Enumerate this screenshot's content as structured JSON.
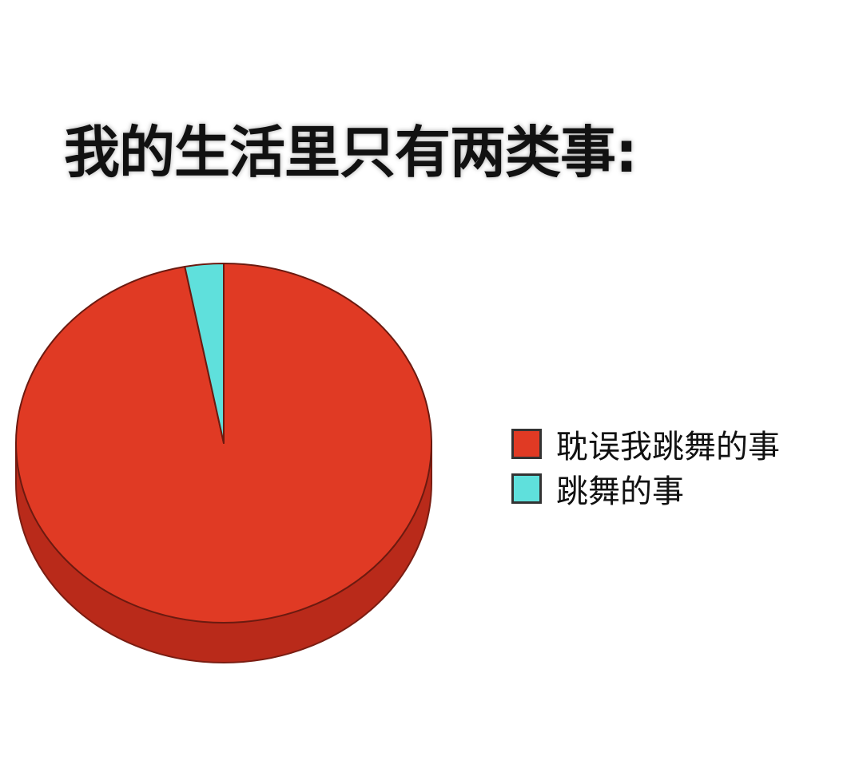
{
  "chart_data": {
    "type": "pie",
    "title": "我的生活里只有两类事:",
    "categories": [
      "耽误我跳舞的事",
      "跳舞的事"
    ],
    "values": [
      97,
      3
    ],
    "colors": [
      "#e03a24",
      "#5fe0dc"
    ],
    "legend_position": "right",
    "style": "3d"
  }
}
